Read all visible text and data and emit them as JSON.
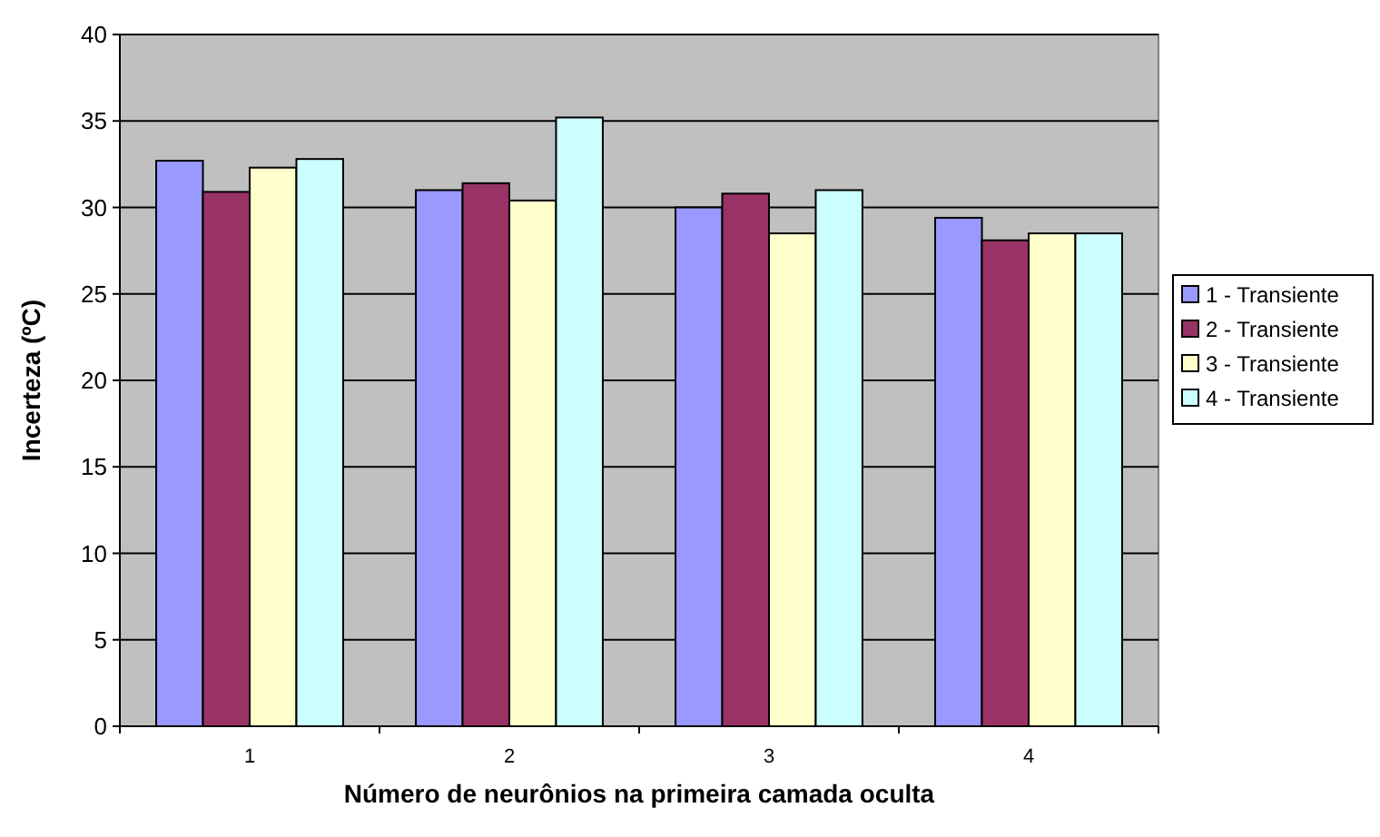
{
  "chart_data": {
    "type": "bar",
    "xlabel": "Número de neurônios na primeira camada oculta",
    "ylabel": "Incerteza (ºC)",
    "categories": [
      "1",
      "2",
      "3",
      "4"
    ],
    "series": [
      {
        "name": "1 - Transiente",
        "color": "#9999ff",
        "values": [
          32.7,
          31.0,
          30.0,
          29.4
        ]
      },
      {
        "name": "2 - Transiente",
        "color": "#993366",
        "values": [
          30.9,
          31.4,
          30.8,
          28.1
        ]
      },
      {
        "name": "3 - Transiente",
        "color": "#ffffcc",
        "values": [
          32.3,
          30.4,
          28.5,
          28.5
        ]
      },
      {
        "name": "4 - Transiente",
        "color": "#ccffff",
        "values": [
          32.8,
          35.2,
          31.0,
          28.5
        ]
      }
    ],
    "ylim": [
      0,
      40
    ],
    "yticks": [
      0,
      5,
      10,
      15,
      20,
      25,
      30,
      35,
      40
    ],
    "grid": "y",
    "legend": "right"
  }
}
